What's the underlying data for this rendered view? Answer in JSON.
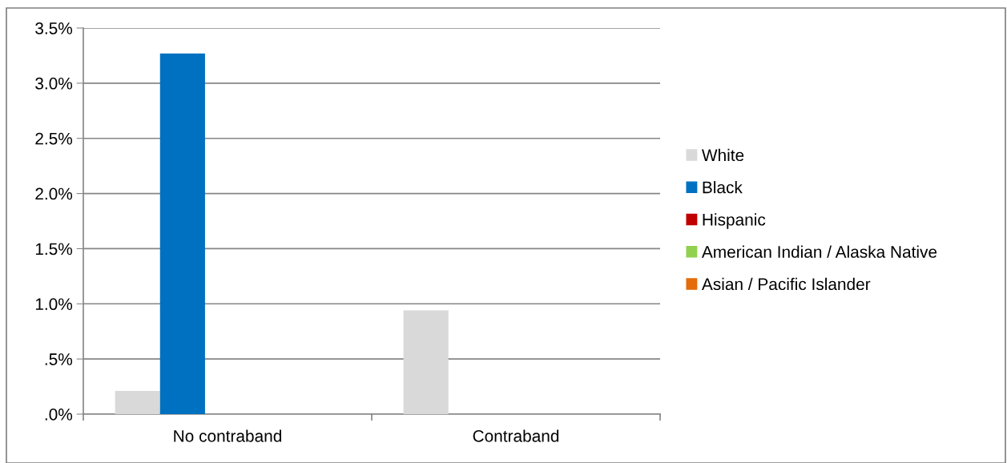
{
  "chart_data": {
    "type": "bar",
    "categories": [
      "No contraband",
      "Contraband"
    ],
    "series": [
      {
        "name": "White",
        "color": "#d9d9d9",
        "values": [
          0.21,
          0.94
        ]
      },
      {
        "name": "Black",
        "color": "#0070c0",
        "values": [
          3.27,
          0
        ]
      },
      {
        "name": "Hispanic",
        "color": "#c00000",
        "values": [
          0,
          0
        ]
      },
      {
        "name": "American Indian / Alaska Native",
        "color": "#92d050",
        "values": [
          0,
          0
        ]
      },
      {
        "name": "Asian / Pacific Islander",
        "color": "#e46c0a",
        "values": [
          0,
          0
        ]
      }
    ],
    "ylim": [
      0,
      3.5
    ],
    "yticks": [
      {
        "value": 0,
        "label": ".0%"
      },
      {
        "value": 0.5,
        "label": ".5%"
      },
      {
        "value": 1.0,
        "label": "1.0%"
      },
      {
        "value": 1.5,
        "label": "1.5%"
      },
      {
        "value": 2.0,
        "label": "2.0%"
      },
      {
        "value": 2.5,
        "label": "2.5%"
      },
      {
        "value": 3.0,
        "label": "3.0%"
      },
      {
        "value": 3.5,
        "label": "3.5%"
      }
    ],
    "grid": "y",
    "legend": "right"
  }
}
